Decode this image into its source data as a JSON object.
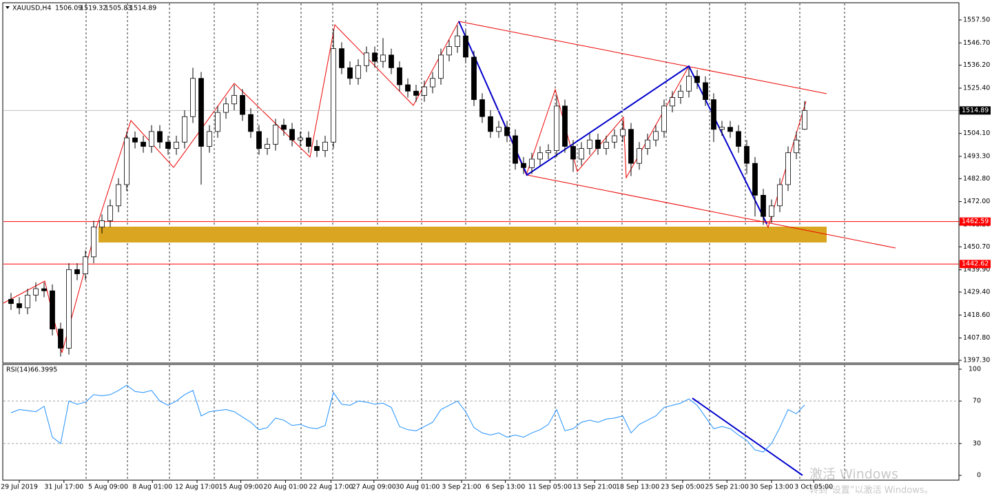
{
  "chart_data": [
    {
      "type": "candlestick",
      "title": "XAUUSD,H4",
      "open": [
        1426,
        1424,
        1422,
        1428,
        1431,
        1430,
        1412,
        1403,
        1440,
        1438,
        1446,
        1460,
        1463,
        1470,
        1480,
        1502,
        1500,
        1498,
        1505,
        1500,
        1497,
        1500,
        1512,
        1530,
        1498,
        1505,
        1514,
        1518,
        1522,
        1513,
        1505,
        1497,
        1499,
        1508,
        1506,
        1501,
        1502,
        1498,
        1496,
        1500,
        1544,
        1535,
        1530,
        1536,
        1542,
        1538,
        1541,
        1535,
        1527,
        1524,
        1522,
        1526,
        1530,
        1541,
        1545,
        1550,
        1540,
        1520,
        1512,
        1505,
        1507,
        1503,
        1490,
        1488,
        1492,
        1495,
        1496,
        1517,
        1498,
        1492,
        1497,
        1501,
        1497,
        1500,
        1503,
        1506,
        1490,
        1497,
        1501,
        1505,
        1517,
        1521,
        1524,
        1531,
        1528,
        1520,
        1506,
        1507,
        1505,
        1498,
        1490,
        1475,
        1465,
        1470,
        1480,
        1495,
        1506.09
      ],
      "high": [
        1429,
        1427,
        1431,
        1434,
        1434,
        1433,
        1415,
        1443,
        1443,
        1449,
        1463,
        1466,
        1473,
        1483,
        1505,
        1505,
        1503,
        1508,
        1508,
        1503,
        1503,
        1515,
        1535,
        1533,
        1508,
        1517,
        1521,
        1527,
        1525,
        1516,
        1508,
        1502,
        1511,
        1511,
        1509,
        1505,
        1505,
        1501,
        1503,
        1553,
        1547,
        1538,
        1539,
        1545,
        1545,
        1549,
        1544,
        1538,
        1530,
        1527,
        1529,
        1533,
        1544,
        1548,
        1555,
        1553,
        1543,
        1523,
        1515,
        1510,
        1510,
        1506,
        1493,
        1495,
        1498,
        1499,
        1522,
        1520,
        1501,
        1500,
        1504,
        1504,
        1503,
        1506,
        1510,
        1509,
        1500,
        1504,
        1508,
        1520,
        1524,
        1527,
        1535,
        1534,
        1531,
        1523,
        1510,
        1510,
        1508,
        1501,
        1493,
        1478,
        1473,
        1483,
        1498,
        1505,
        1519.32
      ],
      "low": [
        1421,
        1419,
        1419,
        1425,
        1427,
        1409,
        1399,
        1400,
        1435,
        1435,
        1443,
        1457,
        1460,
        1467,
        1477,
        1497,
        1495,
        1495,
        1497,
        1494,
        1494,
        1497,
        1509,
        1480,
        1495,
        1502,
        1511,
        1515,
        1510,
        1502,
        1494,
        1494,
        1496,
        1503,
        1498,
        1498,
        1495,
        1493,
        1493,
        1497,
        1532,
        1527,
        1527,
        1533,
        1535,
        1535,
        1532,
        1524,
        1521,
        1519,
        1519,
        1523,
        1527,
        1538,
        1542,
        1537,
        1517,
        1509,
        1502,
        1502,
        1500,
        1487,
        1485,
        1485,
        1489,
        1492,
        1493,
        1495,
        1486,
        1489,
        1494,
        1494,
        1494,
        1497,
        1500,
        1484,
        1487,
        1494,
        1498,
        1502,
        1514,
        1518,
        1521,
        1525,
        1517,
        1500,
        1503,
        1502,
        1495,
        1485,
        1465,
        1461,
        1462,
        1467,
        1477,
        1492,
        1505.83
      ],
      "close": [
        1424,
        1422,
        1428,
        1431,
        1430,
        1412,
        1403,
        1440,
        1438,
        1446,
        1460,
        1463,
        1470,
        1480,
        1502,
        1500,
        1498,
        1505,
        1500,
        1497,
        1500,
        1512,
        1530,
        1498,
        1505,
        1514,
        1518,
        1522,
        1513,
        1505,
        1497,
        1499,
        1508,
        1506,
        1501,
        1502,
        1498,
        1496,
        1500,
        1544,
        1535,
        1530,
        1536,
        1542,
        1538,
        1541,
        1535,
        1527,
        1524,
        1522,
        1526,
        1530,
        1541,
        1545,
        1550,
        1540,
        1520,
        1512,
        1505,
        1507,
        1503,
        1490,
        1488,
        1492,
        1495,
        1496,
        1517,
        1498,
        1492,
        1497,
        1501,
        1497,
        1500,
        1503,
        1506,
        1490,
        1497,
        1501,
        1505,
        1517,
        1521,
        1524,
        1531,
        1528,
        1520,
        1506,
        1507,
        1505,
        1498,
        1490,
        1475,
        1465,
        1470,
        1480,
        1495,
        1501,
        1514.89
      ],
      "up_color": "#ffffff",
      "down_color": "#000000",
      "ylim": [
        1396.0,
        1565.6
      ],
      "yticks": [
        {
          "value": 1557.5,
          "label": "1557.50"
        },
        {
          "value": 1546.7,
          "label": "1546.70"
        },
        {
          "value": 1536.2,
          "label": "1536.20"
        },
        {
          "value": 1525.4,
          "label": "1525.40"
        },
        {
          "value": 1514.8,
          "label": "1514.80"
        },
        {
          "value": 1504.1,
          "label": "1504.10"
        },
        {
          "value": 1493.3,
          "label": "1493.30"
        },
        {
          "value": 1482.8,
          "label": "1482.80"
        },
        {
          "value": 1472.0,
          "label": "1472.00"
        },
        {
          "value": 1461.2,
          "label": "1461.20"
        },
        {
          "value": 1450.7,
          "label": "1450.70"
        },
        {
          "value": 1439.9,
          "label": "1439.90"
        },
        {
          "value": 1429.4,
          "label": "1429.40"
        },
        {
          "value": 1418.6,
          "label": "1418.60"
        },
        {
          "value": 1407.8,
          "label": "1407.80"
        },
        {
          "value": 1397.3,
          "label": "1397.30"
        }
      ],
      "hlines": [
        1462.59,
        1442.62
      ],
      "hline_color": "#ff0000",
      "xticks": [
        {
          "value": 1,
          "label": "29 Jul 2019"
        },
        {
          "value": 6.4,
          "label": "31 Jul 17:00"
        },
        {
          "value": 11.75,
          "label": "5 Aug 09:00"
        },
        {
          "value": 17.1,
          "label": "8 Aug 01:00"
        },
        {
          "value": 22.5,
          "label": "12 Aug 17:00"
        },
        {
          "value": 27.8,
          "label": "15 Aug 09:00"
        },
        {
          "value": 33.2,
          "label": "20 Aug 01:00"
        },
        {
          "value": 38.7,
          "label": "22 Aug 17:00"
        },
        {
          "value": 43.9,
          "label": "27 Aug 09:00"
        },
        {
          "value": 49.2,
          "label": "30 Aug 01:00"
        },
        {
          "value": 54.5,
          "label": "3 Sep 21:00"
        },
        {
          "value": 59.8,
          "label": "6 Sep 13:00"
        },
        {
          "value": 65.2,
          "label": "11 Sep 05:00"
        },
        {
          "value": 70.6,
          "label": "13 Sep 21:00"
        },
        {
          "value": 75.8,
          "label": "18 Sep 13:00"
        },
        {
          "value": 81.25,
          "label": "23 Sep 05:00"
        },
        {
          "value": 86.6,
          "label": "25 Sep 21:00"
        },
        {
          "value": 92,
          "label": "30 Sep 13:00"
        },
        {
          "value": 97.1,
          "label": "3 Oct 05:00"
        }
      ]
    },
    {
      "type": "line",
      "title": "RSI(14)",
      "color": "#1e90ff",
      "values": [
        59,
        62,
        61,
        60,
        65,
        36,
        30,
        70,
        67,
        69,
        76,
        75,
        76,
        80,
        85,
        79,
        78,
        80,
        70,
        66,
        70,
        76,
        80,
        56,
        60,
        61,
        62,
        60,
        55,
        50,
        43,
        45,
        54,
        52,
        47,
        48,
        45,
        44,
        47,
        78,
        67,
        66,
        70,
        69,
        67,
        68,
        64,
        46,
        43,
        42,
        46,
        50,
        62,
        66,
        70,
        60,
        45,
        40,
        38,
        40,
        36,
        38,
        36,
        40,
        43,
        48,
        62,
        42,
        44,
        50,
        52,
        50,
        53,
        54,
        56,
        40,
        48,
        52,
        56,
        64,
        66,
        68,
        72,
        66,
        55,
        44,
        46,
        44,
        38,
        33,
        24,
        22,
        30,
        45,
        62,
        58,
        66.3995
      ],
      "ylim": [
        -4.5,
        104.5
      ],
      "yticks": [
        100,
        70,
        30,
        0
      ]
    }
  ],
  "watermark": {
    "line1": "激活 Windows",
    "line2": "转到“设置”以激活 Windows。"
  }
}
